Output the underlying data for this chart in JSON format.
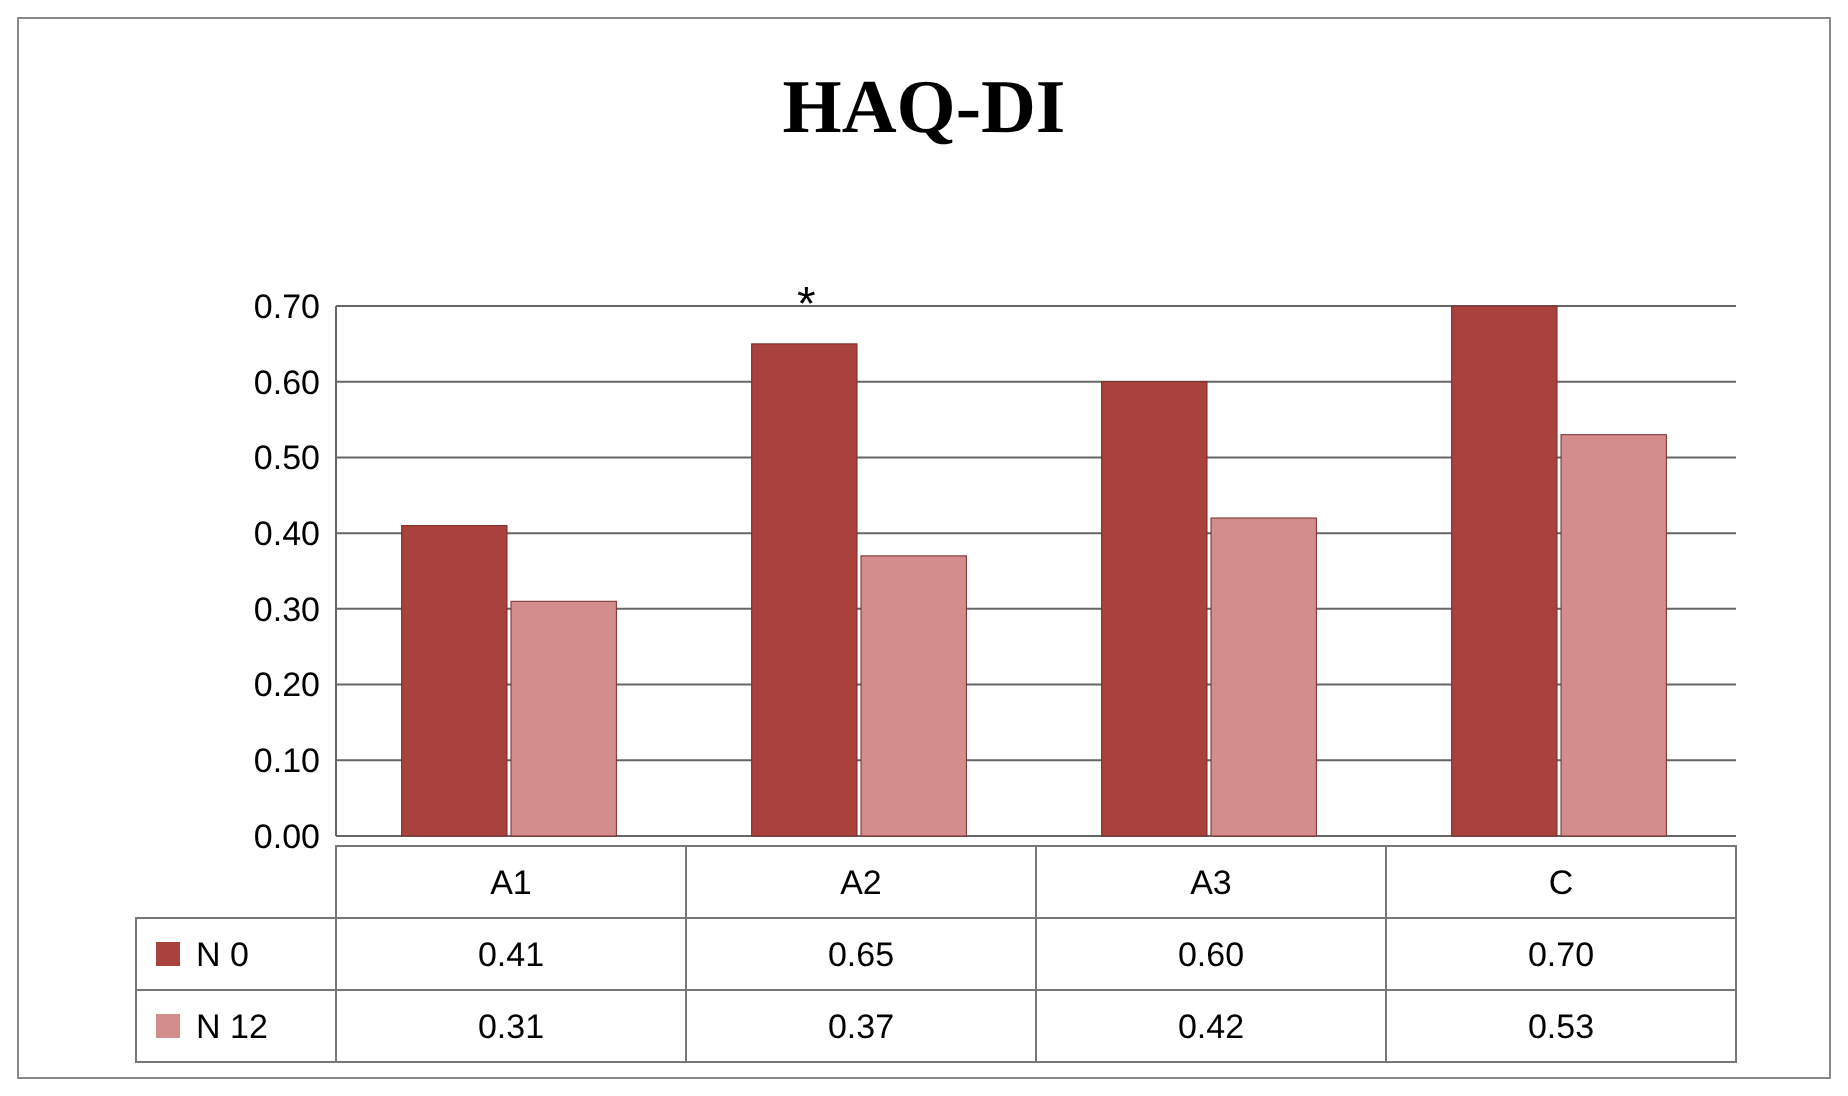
{
  "chart_data": {
    "type": "bar",
    "title": "HAQ-DI",
    "categories": [
      "A1",
      "A2",
      "A3",
      "C"
    ],
    "series": [
      {
        "name": "N 0",
        "color": "#a9413d",
        "values": [
          0.41,
          0.65,
          0.6,
          0.7
        ],
        "value_labels": [
          "0.41",
          "0.65",
          "0.60",
          "0.70"
        ]
      },
      {
        "name": "N 12",
        "color": "#d48d8d",
        "values": [
          0.31,
          0.37,
          0.42,
          0.53
        ],
        "value_labels": [
          "0.31",
          "0.37",
          "0.42",
          "0.53"
        ]
      }
    ],
    "ylim": [
      0,
      0.7
    ],
    "yticks": [
      {
        "value": 0,
        "label": "0.00"
      },
      {
        "value": 0.1,
        "label": "0.10"
      },
      {
        "value": 0.2,
        "label": "0.20"
      },
      {
        "value": 0.3,
        "label": "0.30"
      },
      {
        "value": 0.4,
        "label": "0.40"
      },
      {
        "value": 0.5,
        "label": "0.50"
      },
      {
        "value": 0.6,
        "label": "0.60"
      },
      {
        "value": 0.7,
        "label": "0.70"
      }
    ],
    "grid": "y",
    "legend": "bottom left",
    "annotations": [
      {
        "text": "*",
        "x": "A2",
        "y": 0.65
      }
    ]
  }
}
